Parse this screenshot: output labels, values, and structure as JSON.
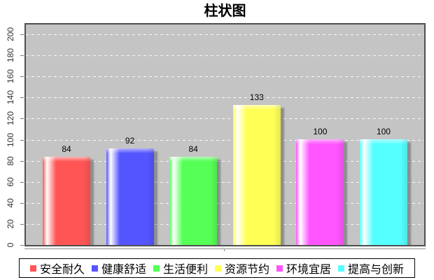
{
  "title": "柱状图",
  "colors": {
    "plot_background": "#c4c4c4",
    "plot_border": "#4f4f4f",
    "gridline": "#ffffff",
    "axis_line": "#8a8a8a",
    "text": "#000000"
  },
  "chart_data": {
    "type": "bar",
    "title": "柱状图",
    "categories": [
      "安全耐久",
      "健康舒适",
      "生活便利",
      "资源节约",
      "环境宜居",
      "提高与创新"
    ],
    "values": [
      84,
      92,
      84,
      133,
      100,
      100
    ],
    "bar_colors": [
      "#ff5555",
      "#5555ff",
      "#55ff55",
      "#ffff55",
      "#ff55ff",
      "#55ffff"
    ],
    "value_labels": [
      "84",
      "92",
      "84",
      "133",
      "100",
      "100"
    ],
    "ylim": [
      0,
      200
    ],
    "ytick_interval": 20,
    "ytick_labels": [
      "0",
      "20",
      "40",
      "60",
      "80",
      "100",
      "120",
      "140",
      "160",
      "180",
      "200"
    ],
    "grid": "horizontal dashed white lines on gray plot background",
    "legend_position": "bottom",
    "legend": [
      "安全耐久",
      "健康舒适",
      "生活便利",
      "资源节约",
      "环境宜居",
      "提高与创新"
    ],
    "xlabel": "",
    "ylabel": ""
  }
}
